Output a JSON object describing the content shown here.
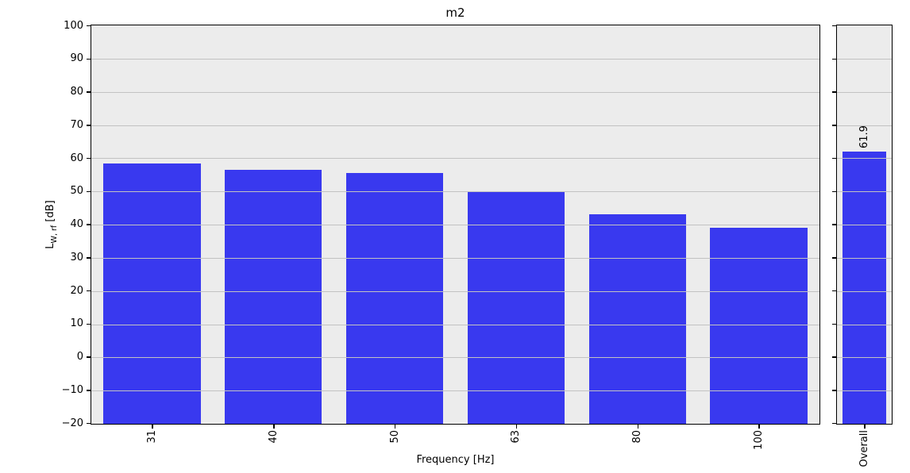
{
  "chart_data": {
    "type": "bar",
    "title": "m2",
    "xlabel": "Frequency [Hz]",
    "ylabel": {
      "base": "L",
      "subscript": "W, rf",
      "unit": " [dB]"
    },
    "categories": [
      "31",
      "40",
      "50",
      "63",
      "80",
      "100"
    ],
    "values": [
      58.5,
      56.4,
      55.6,
      49.8,
      43.0,
      39.0
    ],
    "overall_panel": {
      "category": "Overall",
      "value": 61.9,
      "value_label": "61.9"
    },
    "ylim": [
      -20,
      100
    ],
    "yticks": [
      100,
      90,
      80,
      70,
      60,
      50,
      40,
      30,
      20,
      10,
      0,
      -10,
      -20
    ],
    "ytick_labels": [
      "100",
      "90",
      "80",
      "70",
      "60",
      "50",
      "40",
      "30",
      "20",
      "10",
      "0",
      "−10",
      "−20"
    ],
    "grid": true,
    "legend": false,
    "colors": {
      "bar": "#3939ef",
      "plot_background": "#ececec",
      "grid": "#c2c2c2",
      "spine": "#000000"
    }
  }
}
